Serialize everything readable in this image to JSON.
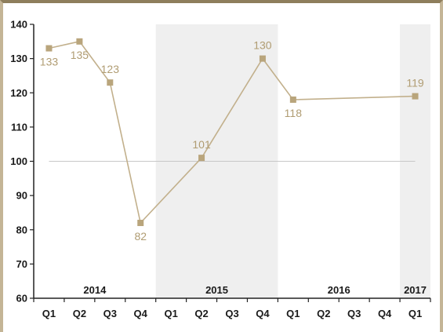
{
  "chart_data": {
    "type": "line",
    "title": "",
    "xlabel": "",
    "ylabel": "",
    "ylim": [
      60,
      140
    ],
    "yticks": [
      60,
      70,
      80,
      90,
      100,
      110,
      120,
      130,
      140
    ],
    "categories": [
      "Q1",
      "Q2",
      "Q3",
      "Q4",
      "Q1",
      "Q2",
      "Q3",
      "Q4",
      "Q1",
      "Q2",
      "Q3",
      "Q4",
      "Q1"
    ],
    "year_groups": [
      {
        "label": "2014",
        "start": 0,
        "end": 3,
        "shaded": false
      },
      {
        "label": "2015",
        "start": 4,
        "end": 7,
        "shaded": true
      },
      {
        "label": "2016",
        "start": 8,
        "end": 11,
        "shaded": false
      },
      {
        "label": "2017",
        "start": 12,
        "end": 12,
        "shaded": true
      }
    ],
    "series": [
      {
        "points": [
          {
            "x": 0,
            "y": 133
          },
          {
            "x": 1,
            "y": 135
          },
          {
            "x": 2,
            "y": 123
          },
          {
            "x": 3,
            "y": 82
          },
          {
            "x": 5,
            "y": 101
          },
          {
            "x": 7,
            "y": 130
          },
          {
            "x": 8,
            "y": 118
          },
          {
            "x": 12,
            "y": 119
          }
        ]
      }
    ],
    "reference_line": 100,
    "grid": false,
    "colors": {
      "line": "#c2b08c",
      "marker": "#b9a57c",
      "label": "#b09c72",
      "shade": "#efefef",
      "reference": "#c8c8c8",
      "axis": "#222222",
      "frame": "#c4b596"
    }
  }
}
